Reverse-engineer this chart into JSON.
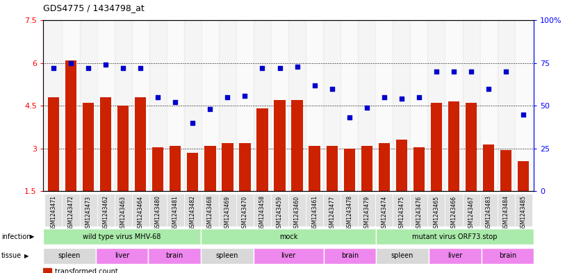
{
  "title": "GDS4775 / 1434798_at",
  "samples": [
    "GSM1243471",
    "GSM1243472",
    "GSM1243473",
    "GSM1243462",
    "GSM1243463",
    "GSM1243464",
    "GSM1243480",
    "GSM1243481",
    "GSM1243482",
    "GSM1243468",
    "GSM1243469",
    "GSM1243470",
    "GSM1243458",
    "GSM1243459",
    "GSM1243460",
    "GSM1243461",
    "GSM1243477",
    "GSM1243478",
    "GSM1243479",
    "GSM1243474",
    "GSM1243475",
    "GSM1243476",
    "GSM1243465",
    "GSM1243466",
    "GSM1243467",
    "GSM1243483",
    "GSM1243484",
    "GSM1243485"
  ],
  "bar_values": [
    4.8,
    6.1,
    4.6,
    4.8,
    4.5,
    4.8,
    3.05,
    3.1,
    2.85,
    3.1,
    3.2,
    3.2,
    4.4,
    4.7,
    4.7,
    3.1,
    3.1,
    3.0,
    3.1,
    3.2,
    3.3,
    3.05,
    4.6,
    4.65,
    4.6,
    3.15,
    2.95,
    2.55
  ],
  "percentile_values": [
    72,
    75,
    72,
    74,
    72,
    72,
    55,
    52,
    40,
    48,
    55,
    56,
    72,
    72,
    73,
    62,
    60,
    43,
    49,
    55,
    54,
    55,
    70,
    70,
    70,
    60,
    70,
    45
  ],
  "ylim_left": [
    1.5,
    7.5
  ],
  "ylim_right": [
    0,
    100
  ],
  "yticks_left": [
    1.5,
    3.0,
    4.5,
    6.0,
    7.5
  ],
  "yticks_right": [
    0,
    25,
    50,
    75,
    100
  ],
  "bar_color": "#cc2200",
  "dot_color": "#0000cc",
  "infection_groups": [
    {
      "label": "wild type virus MHV-68",
      "start": 0,
      "end": 9
    },
    {
      "label": "mock",
      "start": 9,
      "end": 19
    },
    {
      "label": "mutant virus ORF73.stop",
      "start": 19,
      "end": 28
    }
  ],
  "tissue_groups": [
    {
      "label": "spleen",
      "start": 0,
      "end": 3,
      "color": "#d8d8d8"
    },
    {
      "label": "liver",
      "start": 3,
      "end": 6,
      "color": "#ee88ee"
    },
    {
      "label": "brain",
      "start": 6,
      "end": 9,
      "color": "#ee88ee"
    },
    {
      "label": "spleen",
      "start": 9,
      "end": 12,
      "color": "#d8d8d8"
    },
    {
      "label": "liver",
      "start": 12,
      "end": 16,
      "color": "#ee88ee"
    },
    {
      "label": "brain",
      "start": 16,
      "end": 19,
      "color": "#ee88ee"
    },
    {
      "label": "spleen",
      "start": 19,
      "end": 22,
      "color": "#d8d8d8"
    },
    {
      "label": "liver",
      "start": 22,
      "end": 25,
      "color": "#ee88ee"
    },
    {
      "label": "brain",
      "start": 25,
      "end": 28,
      "color": "#ee88ee"
    }
  ]
}
